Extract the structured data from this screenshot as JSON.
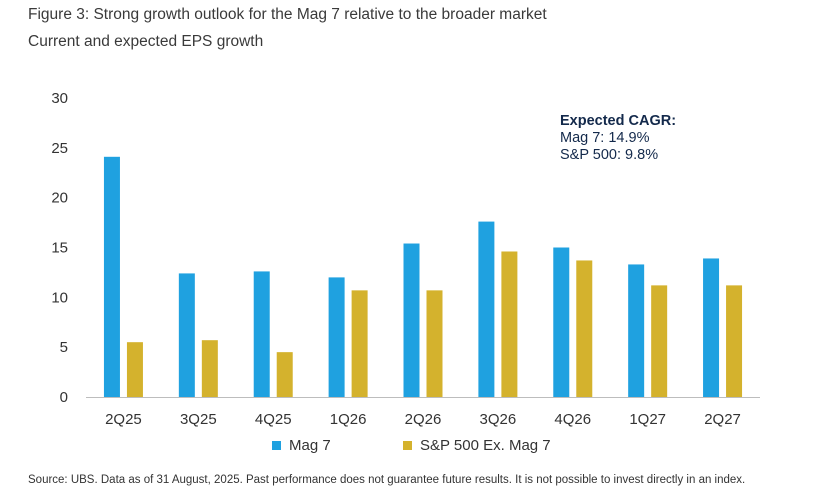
{
  "chart_data": {
    "type": "bar",
    "title": "Figure 3: Strong growth outlook for the Mag 7 relative to the broader market",
    "subtitle": "Current and expected EPS growth",
    "categories": [
      "2Q25",
      "3Q25",
      "4Q25",
      "1Q26",
      "2Q26",
      "3Q26",
      "4Q26",
      "1Q27",
      "2Q27"
    ],
    "series": [
      {
        "name": "Mag 7",
        "color": "#1fa1e0",
        "values": [
          24.1,
          12.4,
          12.6,
          12.0,
          15.4,
          17.6,
          15.0,
          13.3,
          13.9
        ]
      },
      {
        "name": "S&P 500 Ex. Mag 7",
        "color": "#d4b22d",
        "values": [
          5.5,
          5.7,
          4.5,
          10.7,
          10.7,
          14.6,
          13.7,
          11.2,
          11.2
        ]
      }
    ],
    "ylim": [
      0,
      30
    ],
    "yticks": [
      "0",
      "5",
      "10",
      "15",
      "20",
      "25",
      "30"
    ],
    "grid": false,
    "legend_position": "bottom",
    "annotation": {
      "heading": "Expected CAGR:",
      "lines": [
        "Mag 7: 14.9%",
        "S&P 500: 9.8%"
      ]
    },
    "source": "Source: UBS. Data as of 31 August, 2025. Past performance does not guarantee future results. It is not possible to invest directly in an index."
  }
}
